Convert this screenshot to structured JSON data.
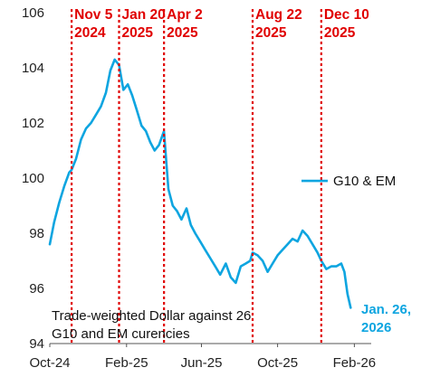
{
  "chart_data": {
    "type": "line",
    "title": "",
    "xlabel": "",
    "ylabel": "",
    "ylim": [
      94,
      106
    ],
    "y_ticks": [
      94,
      96,
      98,
      100,
      102,
      104,
      106
    ],
    "x_range": [
      "2024-10-01",
      "2026-02-28"
    ],
    "x_ticks": [
      {
        "date": "2024-10-01",
        "label": "Oct-24"
      },
      {
        "date": "2025-02-01",
        "label": "Feb-25"
      },
      {
        "date": "2025-06-01",
        "label": "Jun-25"
      },
      {
        "date": "2025-10-01",
        "label": "Oct-25"
      },
      {
        "date": "2026-02-01",
        "label": "Feb-26"
      }
    ],
    "grid": false,
    "legend_position": "right",
    "colors": {
      "series": "#0ea5e0",
      "events": "#e00000",
      "axis": "#555555"
    },
    "series": [
      {
        "name": "G10 & EM",
        "x": [
          "2024-10-01",
          "2024-10-08",
          "2024-10-16",
          "2024-10-24",
          "2024-11-01",
          "2024-11-05",
          "2024-11-12",
          "2024-11-20",
          "2024-11-28",
          "2024-12-06",
          "2024-12-14",
          "2024-12-22",
          "2024-12-30",
          "2025-01-06",
          "2025-01-13",
          "2025-01-20",
          "2025-01-27",
          "2025-02-03",
          "2025-02-10",
          "2025-02-17",
          "2025-02-25",
          "2025-03-04",
          "2025-03-11",
          "2025-03-18",
          "2025-03-25",
          "2025-04-02",
          "2025-04-09",
          "2025-04-16",
          "2025-04-23",
          "2025-04-30",
          "2025-05-08",
          "2025-05-15",
          "2025-05-22",
          "2025-05-30",
          "2025-06-07",
          "2025-06-15",
          "2025-06-23",
          "2025-07-01",
          "2025-07-10",
          "2025-07-18",
          "2025-07-26",
          "2025-08-03",
          "2025-08-11",
          "2025-08-18",
          "2025-08-22",
          "2025-08-30",
          "2025-09-07",
          "2025-09-15",
          "2025-09-23",
          "2025-10-01",
          "2025-10-09",
          "2025-10-17",
          "2025-10-25",
          "2025-11-02",
          "2025-11-10",
          "2025-11-18",
          "2025-11-26",
          "2025-12-04",
          "2025-12-10",
          "2025-12-18",
          "2025-12-26",
          "2026-01-03",
          "2026-01-11",
          "2026-01-16",
          "2026-01-21",
          "2026-01-26"
        ],
        "values": [
          97.6,
          98.4,
          99.1,
          99.7,
          100.2,
          100.3,
          100.7,
          101.4,
          101.8,
          102.0,
          102.3,
          102.6,
          103.1,
          103.9,
          104.3,
          104.1,
          103.2,
          103.4,
          103.0,
          102.5,
          101.9,
          101.7,
          101.3,
          101.0,
          101.2,
          101.7,
          99.6,
          99.0,
          98.8,
          98.5,
          98.9,
          98.3,
          98.0,
          97.7,
          97.4,
          97.1,
          96.8,
          96.5,
          96.9,
          96.4,
          96.2,
          96.8,
          96.9,
          97.0,
          97.3,
          97.2,
          97.0,
          96.6,
          96.9,
          97.2,
          97.4,
          97.6,
          97.8,
          97.7,
          98.1,
          97.9,
          97.6,
          97.3,
          97.0,
          96.7,
          96.8,
          96.8,
          96.9,
          96.6,
          95.8,
          95.3
        ]
      }
    ],
    "events": [
      {
        "date": "2024-11-05",
        "label_line1": "Nov 5",
        "label_line2": "2024"
      },
      {
        "date": "2025-01-20",
        "label_line1": "Jan 20",
        "label_line2": "2025"
      },
      {
        "date": "2025-04-02",
        "label_line1": "Apr 2",
        "label_line2": "2025"
      },
      {
        "date": "2025-08-22",
        "label_line1": "Aug 22",
        "label_line2": "2025"
      },
      {
        "date": "2025-12-10",
        "label_line1": "Dec 10",
        "label_line2": "2025"
      }
    ],
    "legend": [
      {
        "label": "G10 & EM"
      }
    ],
    "end_label": {
      "line1": "Jan. 26,",
      "line2": "2026"
    },
    "annotation": {
      "line1": "Trade-weighted Dollar against 26",
      "line2": "G10 and EM curencies"
    }
  }
}
